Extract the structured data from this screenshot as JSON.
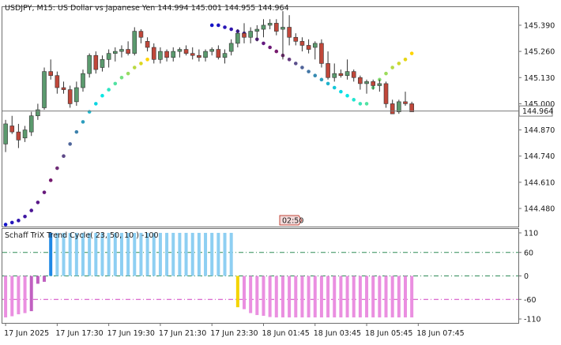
{
  "header": {
    "symbol": "USDJPY",
    "timeframe": "M15",
    "description": "US Dollar vs Japanese Yen",
    "ohlc": [
      "144.994",
      "145.001",
      "144.955",
      "144.964"
    ]
  },
  "current_price_label": "144.964",
  "countdown_label": "02:50",
  "indicator_title": "Schaff TriX Trend Cycle( 23, 50, 10 ) -100",
  "colors": {
    "bull_candle": "#5b9a6e",
    "bear_candle": "#c0473a",
    "dot_ramp": [
      "#1414c8",
      "#7a1a6a",
      "#00e8ee",
      "#ffd400"
    ],
    "stc_bull": "#8ecff2",
    "stc_bull_start": "#1e88e5",
    "stc_bear": "#ea8fe0",
    "stc_bear_start": "#c060c0",
    "stc_neutral": "#f4d400",
    "level_60": "#2e8b57",
    "level_zero": "#2e8b57",
    "level_neg60": "#d040c0"
  },
  "chart_data": [
    {
      "type": "candlestick",
      "title": "USDJPY, M15:  US Dollar vs Japanese Yen",
      "y_ticks": [
        "145.390",
        "145.260",
        "145.130",
        "145.000",
        "144.870",
        "144.740",
        "144.610",
        "144.480"
      ],
      "ylim": [
        144.39,
        145.48
      ],
      "current_price": 144.964,
      "x_labels": [
        "17 Jun 2025",
        "17 Jun 17:30",
        "17 Jun 19:30",
        "17 Jun 21:30",
        "17 Jun 23:30",
        "18 Jun 01:45",
        "18 Jun 03:45",
        "18 Jun 05:45",
        "18 Jun 07:45"
      ],
      "x_label_bars": [
        0,
        8,
        16,
        24,
        32,
        40,
        48,
        56,
        64
      ],
      "candles": [
        [
          144.8,
          144.92,
          144.76,
          144.9
        ],
        [
          144.89,
          144.94,
          144.85,
          144.86
        ],
        [
          144.86,
          144.9,
          144.78,
          144.82
        ],
        [
          144.83,
          144.89,
          144.81,
          144.87
        ],
        [
          144.86,
          144.96,
          144.84,
          144.94
        ],
        [
          144.94,
          145.0,
          144.92,
          144.97
        ],
        [
          144.98,
          145.18,
          144.97,
          145.16
        ],
        [
          145.16,
          145.22,
          145.12,
          145.14
        ],
        [
          145.14,
          145.16,
          145.05,
          145.08
        ],
        [
          145.08,
          145.11,
          145.05,
          145.07
        ],
        [
          145.07,
          145.09,
          144.98,
          145.0
        ],
        [
          145.01,
          145.11,
          144.99,
          145.08
        ],
        [
          145.08,
          145.17,
          145.06,
          145.15
        ],
        [
          145.15,
          145.25,
          145.13,
          145.24
        ],
        [
          145.24,
          145.26,
          145.15,
          145.17
        ],
        [
          145.18,
          145.24,
          145.16,
          145.22
        ],
        [
          145.22,
          145.27,
          145.18,
          145.25
        ],
        [
          145.25,
          145.28,
          145.21,
          145.26
        ],
        [
          145.26,
          145.29,
          145.23,
          145.27
        ],
        [
          145.27,
          145.31,
          145.24,
          145.25
        ],
        [
          145.25,
          145.38,
          145.24,
          145.36
        ],
        [
          145.36,
          145.37,
          145.3,
          145.33
        ],
        [
          145.31,
          145.33,
          145.26,
          145.28
        ],
        [
          145.28,
          145.3,
          145.2,
          145.22
        ],
        [
          145.22,
          145.28,
          145.2,
          145.26
        ],
        [
          145.26,
          145.27,
          145.21,
          145.23
        ],
        [
          145.23,
          145.28,
          145.21,
          145.26
        ],
        [
          145.26,
          145.28,
          145.23,
          145.27
        ],
        [
          145.27,
          145.29,
          145.24,
          145.25
        ],
        [
          145.25,
          145.28,
          145.22,
          145.24
        ],
        [
          145.24,
          145.27,
          145.21,
          145.23
        ],
        [
          145.23,
          145.27,
          145.21,
          145.26
        ],
        [
          145.26,
          145.28,
          145.24,
          145.27
        ],
        [
          145.27,
          145.29,
          145.22,
          145.23
        ],
        [
          145.23,
          145.27,
          145.2,
          145.25
        ],
        [
          145.26,
          145.32,
          145.24,
          145.3
        ],
        [
          145.3,
          145.37,
          145.28,
          145.35
        ],
        [
          145.35,
          145.4,
          145.3,
          145.33
        ],
        [
          145.33,
          145.38,
          145.3,
          145.36
        ],
        [
          145.36,
          145.39,
          145.31,
          145.37
        ],
        [
          145.37,
          145.42,
          145.33,
          145.39
        ],
        [
          145.39,
          145.42,
          145.37,
          145.4
        ],
        [
          145.4,
          145.42,
          145.34,
          145.36
        ],
        [
          145.37,
          145.46,
          145.22,
          145.38
        ],
        [
          145.38,
          145.44,
          145.29,
          145.33
        ],
        [
          145.33,
          145.35,
          145.29,
          145.31
        ],
        [
          145.31,
          145.33,
          145.26,
          145.29
        ],
        [
          145.29,
          145.32,
          145.25,
          145.27
        ],
        [
          145.28,
          145.31,
          145.22,
          145.3
        ],
        [
          145.3,
          145.32,
          145.18,
          145.2
        ],
        [
          145.2,
          145.26,
          145.12,
          145.13
        ],
        [
          145.13,
          145.2,
          145.11,
          145.15
        ],
        [
          145.15,
          145.17,
          145.13,
          145.14
        ],
        [
          145.14,
          145.22,
          145.12,
          145.16
        ],
        [
          145.16,
          145.17,
          145.11,
          145.13
        ],
        [
          145.13,
          145.14,
          145.07,
          145.1
        ],
        [
          145.1,
          145.12,
          145.05,
          145.11
        ],
        [
          145.11,
          145.12,
          145.07,
          145.09
        ],
        [
          145.09,
          145.12,
          145.06,
          145.1
        ],
        [
          145.1,
          145.11,
          144.98,
          145.0
        ],
        [
          145.0,
          145.02,
          144.95,
          144.95
        ],
        [
          144.96,
          145.02,
          144.95,
          145.01
        ],
        [
          145.01,
          145.06,
          144.99,
          145.0
        ],
        [
          145.0,
          145.01,
          144.96,
          144.96
        ]
      ],
      "trail_dots": [
        144.4,
        144.41,
        144.42,
        144.44,
        144.47,
        144.51,
        144.56,
        144.62,
        144.68,
        144.74,
        144.8,
        144.86,
        144.91,
        144.96,
        145.0,
        145.04,
        145.07,
        145.1,
        145.13,
        145.15,
        145.18,
        145.2,
        145.22,
        null,
        null,
        null,
        null,
        null,
        null,
        null,
        null,
        null,
        145.39,
        145.39,
        145.38,
        145.37,
        145.36,
        145.35,
        145.34,
        145.32,
        145.3,
        145.28,
        145.26,
        145.24,
        145.22,
        145.2,
        145.18,
        145.16,
        145.14,
        145.12,
        145.1,
        145.08,
        145.06,
        145.04,
        145.02,
        145.0,
        145.0,
        145.08,
        145.12,
        145.15,
        145.18,
        145.2,
        145.22,
        145.25
      ]
    },
    {
      "type": "histogram",
      "title": "Schaff TriX Trend Cycle( 23, 50, 10 ) -100",
      "y_ticks": [
        "110",
        "60",
        "0",
        "-60",
        "-110"
      ],
      "ylim": [
        -120,
        120
      ],
      "values": [
        -106,
        -103,
        -98,
        -95,
        -90,
        -20,
        -15,
        110,
        110,
        110,
        110,
        110,
        110,
        110,
        110,
        110,
        110,
        110,
        110,
        110,
        110,
        110,
        110,
        110,
        110,
        110,
        110,
        110,
        110,
        110,
        110,
        110,
        110,
        110,
        110,
        110,
        -80,
        -85,
        -95,
        -100,
        -102,
        -105,
        -106,
        -106,
        -106,
        -106,
        -106,
        -106,
        -106,
        -106,
        -106,
        -106,
        -106,
        -106,
        -106,
        -106,
        -106,
        -106,
        -106,
        -106,
        -106,
        -106,
        -106,
        -106
      ]
    }
  ]
}
